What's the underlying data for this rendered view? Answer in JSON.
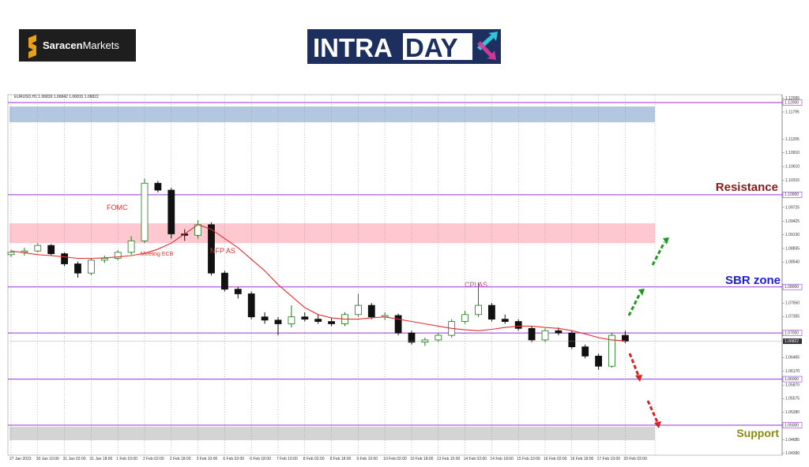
{
  "logos": {
    "saracen": [
      "Saracen",
      "Markets"
    ],
    "intraday": [
      "INTRA",
      "DAY"
    ]
  },
  "annotations": {
    "fomc": "FOMC",
    "ecb": "Meeting ECB",
    "nfp": "NFP AS",
    "cpi": "CPI AS",
    "resistance": "Resistance",
    "sbr": "SBR zone",
    "support": "Support"
  },
  "chart_data": {
    "type": "candlestick",
    "header": "EURUSD,H1  1.06839 1.06842 1.06815 1.06822",
    "last_price": 1.06822,
    "x_labels": [
      "27 Jan 2023",
      "30 Jan 10:00",
      "31 Jan 02:00",
      "31 Jan 18:00",
      "1 Feb 10:00",
      "2 Feb 02:00",
      "2 Feb 18:00",
      "3 Feb 10:00",
      "6 Feb 02:00",
      "6 Feb 18:00",
      "7 Feb 10:00",
      "8 Feb 02:00",
      "8 Feb 18:00",
      "9 Feb 10:00",
      "10 Feb 02:00",
      "10 Feb 18:00",
      "13 Feb 10:00",
      "14 Feb 02:00",
      "14 Feb 18:00",
      "15 Feb 10:00",
      "16 Feb 02:00",
      "16 Feb 18:00",
      "17 Feb 10:00",
      "20 Feb 02:00"
    ],
    "open": [
      1.087,
      1.0875,
      1.0878,
      1.089,
      1.0872,
      1.085,
      1.083,
      1.0858,
      1.0862,
      1.0875,
      1.09,
      1.1025,
      1.101,
      1.0915,
      1.0912,
      1.0935,
      1.083,
      1.0795,
      1.0785,
      1.0735,
      1.0728,
      1.072,
      1.0735,
      1.073,
      1.0725,
      1.072,
      1.074,
      1.076,
      1.0735,
      1.0738,
      1.07,
      1.068,
      1.0685,
      1.0695,
      1.0725,
      1.074,
      1.076,
      1.073,
      1.0725,
      1.071,
      1.0685,
      1.0705,
      1.07,
      1.067,
      1.065,
      1.0628,
      1.0695
    ],
    "high": [
      1.088,
      1.0885,
      1.0895,
      1.0893,
      1.0875,
      1.0855,
      1.0862,
      1.0868,
      1.088,
      1.091,
      1.1035,
      1.103,
      1.1015,
      1.0925,
      1.0945,
      1.094,
      1.0835,
      1.08,
      1.079,
      1.0745,
      1.0735,
      1.076,
      1.0745,
      1.074,
      1.0732,
      1.0745,
      1.0785,
      1.0765,
      1.0745,
      1.0742,
      1.0705,
      1.069,
      1.07,
      1.073,
      1.0748,
      1.081,
      1.0765,
      1.074,
      1.073,
      1.0715,
      1.071,
      1.0712,
      1.0705,
      1.0675,
      1.0655,
      1.07,
      1.0705
    ],
    "low": [
      1.0865,
      1.0868,
      1.0875,
      1.0868,
      1.0845,
      1.082,
      1.0825,
      1.0852,
      1.0858,
      1.087,
      1.0895,
      1.1005,
      1.0905,
      1.09,
      1.0905,
      1.0825,
      1.079,
      1.0775,
      1.073,
      1.072,
      1.0695,
      1.0712,
      1.0725,
      1.072,
      1.0715,
      1.0715,
      1.0735,
      1.073,
      1.0728,
      1.0695,
      1.0675,
      1.0672,
      1.068,
      1.069,
      1.072,
      1.0735,
      1.0725,
      1.072,
      1.0705,
      1.068,
      1.068,
      1.0695,
      1.0665,
      1.0645,
      1.062,
      1.0625,
      1.0678
    ],
    "close": [
      1.0875,
      1.0878,
      1.089,
      1.0872,
      1.085,
      1.083,
      1.0858,
      1.0862,
      1.0875,
      1.09,
      1.1025,
      1.101,
      1.0915,
      1.0912,
      1.0935,
      1.083,
      1.0795,
      1.0785,
      1.0735,
      1.0728,
      1.072,
      1.0735,
      1.073,
      1.0725,
      1.072,
      1.074,
      1.076,
      1.0735,
      1.0738,
      1.07,
      1.068,
      1.0685,
      1.0695,
      1.0725,
      1.074,
      1.076,
      1.073,
      1.0725,
      1.071,
      1.0685,
      1.0705,
      1.07,
      1.067,
      1.065,
      1.0628,
      1.0695,
      1.0682
    ],
    "ma": [
      1.0878,
      1.0874,
      1.087,
      1.0868,
      1.0865,
      1.0862,
      1.0862,
      1.0863,
      1.0865,
      1.0868,
      1.0873,
      1.0882,
      1.0895,
      1.0915,
      1.0935,
      1.0925,
      1.0905,
      1.0885,
      1.086,
      1.0835,
      1.0805,
      1.078,
      1.0755,
      1.074,
      1.0733,
      1.073,
      1.073,
      1.0733,
      1.0735,
      1.073,
      1.0725,
      1.072,
      1.0715,
      1.071,
      1.0707,
      1.0705,
      1.0708,
      1.0712,
      1.0715,
      1.0715,
      1.0712,
      1.071,
      1.0705,
      1.0698,
      1.069,
      1.0685,
      1.0683
    ],
    "up_color": "#1a7a1a",
    "down_color": "#111111",
    "ma_color": "#e03030",
    "level_color": "#9b30d9",
    "ylim": [
      1.0435,
      1.12171
    ],
    "yticks": [
      {
        "value": 1.12095,
        "label": "1.12095"
      },
      {
        "value": 1.11795,
        "label": "1.11795"
      },
      {
        "value": 1.11205,
        "label": "1.11205"
      },
      {
        "value": 1.1091,
        "label": "1.10910"
      },
      {
        "value": 1.1061,
        "label": "1.10610"
      },
      {
        "value": 1.10315,
        "label": "1.10315"
      },
      {
        "value": 1.09725,
        "label": "1.09725"
      },
      {
        "value": 1.09425,
        "label": "1.09425"
      },
      {
        "value": 1.0913,
        "label": "1.09130"
      },
      {
        "value": 1.08835,
        "label": "1.08835"
      },
      {
        "value": 1.0854,
        "label": "1.08540"
      },
      {
        "value": 1.0765,
        "label": "1.07650"
      },
      {
        "value": 1.07355,
        "label": "1.07355"
      },
      {
        "value": 1.06465,
        "label": "1.06465"
      },
      {
        "value": 1.0617,
        "label": "1.06170"
      },
      {
        "value": 1.0587,
        "label": "1.05870"
      },
      {
        "value": 1.05575,
        "label": "1.05575"
      },
      {
        "value": 1.0528,
        "label": "1.05280"
      },
      {
        "value": 1.04685,
        "label": "1.04685"
      },
      {
        "value": 1.0439,
        "label": "1.04390"
      }
    ],
    "levels": [
      {
        "value": 1.12,
        "label": "1.12000"
      },
      {
        "value": 1.1,
        "label": "1.10000"
      },
      {
        "value": 1.08,
        "label": "1.08000"
      },
      {
        "value": 1.07,
        "label": "1.07000"
      },
      {
        "value": 1.06,
        "label": "1.06000"
      },
      {
        "value": 1.05,
        "label": "1.05000"
      }
    ],
    "zones": [
      {
        "from": 1.11572,
        "to": 1.11914,
        "color": "#b4c7e0"
      },
      {
        "from": 1.0895,
        "to": 1.0938,
        "color": "#ffc7cf"
      },
      {
        "from": 1.04675,
        "to": 1.04966,
        "color": "#d4d4d4"
      }
    ]
  }
}
